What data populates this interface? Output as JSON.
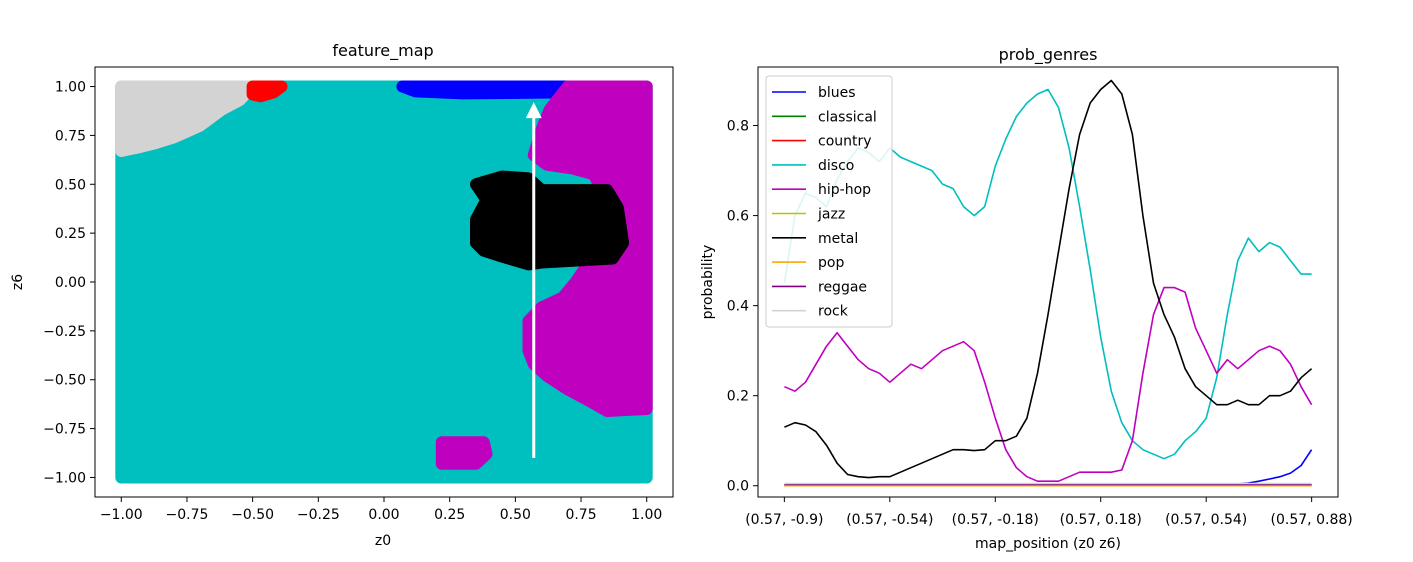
{
  "chart_data": [
    {
      "type": "scatter",
      "title": "feature_map",
      "xlabel": "z0",
      "ylabel": "z6",
      "xlim": [
        -1.1,
        1.1
      ],
      "ylim": [
        -1.1,
        1.1
      ],
      "xticks": [
        -1.0,
        -0.75,
        -0.5,
        -0.25,
        0.0,
        0.25,
        0.5,
        0.75,
        1.0
      ],
      "xtick_labels": [
        "−1.00",
        "−0.75",
        "−0.50",
        "−0.25",
        "0.00",
        "0.25",
        "0.50",
        "0.75",
        "1.00"
      ],
      "yticks": [
        1.0,
        0.75,
        0.5,
        0.25,
        0.0,
        -0.25,
        -0.5,
        -0.75,
        -1.0
      ],
      "ytick_labels": [
        "1.00",
        "0.75",
        "0.50",
        "0.25",
        "0.00",
        "−0.25",
        "−0.50",
        "−0.75",
        "−1.00"
      ],
      "grid": false,
      "regions": [
        {
          "genre": "disco",
          "color": "#00bfbf",
          "polygon": [
            [
              -1.0,
              -1.0
            ],
            [
              1.0,
              -1.0
            ],
            [
              1.0,
              1.0
            ],
            [
              -1.0,
              1.0
            ]
          ]
        },
        {
          "genre": "rock",
          "color": "#d3d3d3",
          "polygon": [
            [
              -1.0,
              1.0
            ],
            [
              -0.5,
              1.0
            ],
            [
              -0.55,
              0.93
            ],
            [
              -0.62,
              0.88
            ],
            [
              -0.66,
              0.84
            ],
            [
              -0.7,
              0.8
            ],
            [
              -0.75,
              0.77
            ],
            [
              -0.8,
              0.74
            ],
            [
              -0.87,
              0.71
            ],
            [
              -0.93,
              0.69
            ],
            [
              -1.0,
              0.67
            ]
          ]
        },
        {
          "genre": "country",
          "color": "#ff0000",
          "polygon": [
            [
              -0.5,
              1.0
            ],
            [
              -0.39,
              1.0
            ],
            [
              -0.42,
              0.97
            ],
            [
              -0.47,
              0.95
            ],
            [
              -0.5,
              0.96
            ]
          ]
        },
        {
          "genre": "blues",
          "color": "#0000ff",
          "polygon": [
            [
              0.07,
              1.0
            ],
            [
              0.72,
              1.0
            ],
            [
              0.7,
              0.97
            ],
            [
              0.3,
              0.965
            ],
            [
              0.12,
              0.975
            ]
          ]
        },
        {
          "genre": "hip-hop",
          "color": "#bf00bf",
          "polygon": [
            [
              0.7,
              1.0
            ],
            [
              1.0,
              1.0
            ],
            [
              1.0,
              -0.65
            ],
            [
              0.85,
              -0.66
            ],
            [
              0.77,
              -0.6
            ],
            [
              0.7,
              -0.55
            ],
            [
              0.62,
              -0.48
            ],
            [
              0.57,
              -0.42
            ],
            [
              0.55,
              -0.35
            ],
            [
              0.55,
              -0.2
            ],
            [
              0.6,
              -0.13
            ],
            [
              0.68,
              -0.08
            ],
            [
              0.73,
              0.0
            ],
            [
              0.78,
              0.1
            ],
            [
              0.82,
              0.2
            ],
            [
              0.85,
              0.4
            ],
            [
              0.8,
              0.55
            ],
            [
              0.72,
              0.58
            ],
            [
              0.62,
              0.6
            ],
            [
              0.57,
              0.65
            ],
            [
              0.6,
              0.78
            ],
            [
              0.63,
              0.88
            ],
            [
              0.67,
              0.95
            ]
          ]
        },
        {
          "genre": "metal",
          "color": "#000000",
          "polygon": [
            [
              0.35,
              0.5
            ],
            [
              0.45,
              0.54
            ],
            [
              0.55,
              0.53
            ],
            [
              0.6,
              0.47
            ],
            [
              0.85,
              0.47
            ],
            [
              0.89,
              0.38
            ],
            [
              0.91,
              0.2
            ],
            [
              0.87,
              0.12
            ],
            [
              0.6,
              0.1
            ],
            [
              0.55,
              0.09
            ],
            [
              0.45,
              0.13
            ],
            [
              0.38,
              0.16
            ],
            [
              0.35,
              0.2
            ],
            [
              0.35,
              0.32
            ],
            [
              0.39,
              0.42
            ]
          ]
        },
        {
          "genre": "hip-hop",
          "color": "#bf00bf",
          "polygon": [
            [
              0.22,
              -0.82
            ],
            [
              0.38,
              -0.82
            ],
            [
              0.39,
              -0.88
            ],
            [
              0.35,
              -0.93
            ],
            [
              0.22,
              -0.93
            ]
          ]
        }
      ],
      "arrow": {
        "x": 0.57,
        "y_start": -0.9,
        "y_end": 0.92,
        "color": "#ffffff"
      }
    },
    {
      "type": "line",
      "title": "prob_genres",
      "xlabel": "map_position (z0 z6)",
      "ylabel": "probability",
      "xlim": [
        -0.05,
        1.05
      ],
      "ylim": [
        -0.025,
        0.93
      ],
      "xticks": [
        0.0,
        0.2,
        0.4,
        0.6,
        0.8,
        1.0
      ],
      "xtick_labels": [
        "(0.57, -0.9)",
        "(0.57, -0.54)",
        "(0.57, -0.18)",
        "(0.57, 0.18)",
        "(0.57, 0.54)",
        "(0.57, 0.88)"
      ],
      "yticks": [
        0.0,
        0.2,
        0.4,
        0.6,
        0.8
      ],
      "ytick_labels": [
        "0.0",
        "0.2",
        "0.4",
        "0.6",
        "0.8"
      ],
      "grid": false,
      "legend_position": "top-left",
      "x": [
        0.0,
        0.02,
        0.04,
        0.06,
        0.08,
        0.1,
        0.12,
        0.14,
        0.16,
        0.18,
        0.2,
        0.22,
        0.24,
        0.26,
        0.28,
        0.3,
        0.32,
        0.34,
        0.36,
        0.38,
        0.4,
        0.42,
        0.44,
        0.46,
        0.48,
        0.5,
        0.52,
        0.54,
        0.56,
        0.58,
        0.6,
        0.62,
        0.64,
        0.66,
        0.68,
        0.7,
        0.72,
        0.74,
        0.76,
        0.78,
        0.8,
        0.82,
        0.84,
        0.86,
        0.88,
        0.9,
        0.92,
        0.94,
        0.96,
        0.98,
        1.0
      ],
      "series": [
        {
          "name": "blues",
          "color": "#0000ff",
          "values": [
            0,
            0,
            0,
            0,
            0,
            0,
            0,
            0,
            0,
            0,
            0,
            0,
            0,
            0,
            0,
            0,
            0,
            0,
            0,
            0,
            0,
            0,
            0,
            0,
            0,
            0,
            0,
            0,
            0,
            0,
            0,
            0,
            0,
            0,
            0,
            0,
            0,
            0,
            0,
            0,
            0.001,
            0.002,
            0.003,
            0.004,
            0.006,
            0.01,
            0.015,
            0.02,
            0.028,
            0.045,
            0.08
          ]
        },
        {
          "name": "classical",
          "color": "#008000",
          "values": [
            0,
            0,
            0,
            0,
            0,
            0,
            0,
            0,
            0,
            0,
            0,
            0,
            0,
            0,
            0,
            0,
            0,
            0,
            0,
            0,
            0,
            0,
            0,
            0,
            0,
            0,
            0,
            0,
            0,
            0,
            0,
            0,
            0,
            0,
            0,
            0,
            0,
            0,
            0,
            0,
            0,
            0,
            0,
            0,
            0,
            0,
            0,
            0,
            0,
            0,
            0
          ]
        },
        {
          "name": "country",
          "color": "#ff0000",
          "values": [
            0.002,
            0.002,
            0.002,
            0.002,
            0.002,
            0.002,
            0.002,
            0.002,
            0.002,
            0.002,
            0.002,
            0.002,
            0.002,
            0.002,
            0.002,
            0.002,
            0.002,
            0.002,
            0.002,
            0.002,
            0.002,
            0.002,
            0.002,
            0.002,
            0.002,
            0.002,
            0.002,
            0.002,
            0.002,
            0.002,
            0.002,
            0.002,
            0.002,
            0.002,
            0.002,
            0.002,
            0.002,
            0.002,
            0.002,
            0.002,
            0.002,
            0.002,
            0.002,
            0.002,
            0.002,
            0.002,
            0.002,
            0.002,
            0.002,
            0.002,
            0.002
          ]
        },
        {
          "name": "disco",
          "color": "#00bfbf",
          "values": [
            0.45,
            0.6,
            0.65,
            0.64,
            0.62,
            0.68,
            0.72,
            0.75,
            0.74,
            0.72,
            0.75,
            0.73,
            0.72,
            0.71,
            0.7,
            0.67,
            0.66,
            0.62,
            0.6,
            0.62,
            0.71,
            0.77,
            0.82,
            0.85,
            0.87,
            0.88,
            0.84,
            0.75,
            0.62,
            0.48,
            0.33,
            0.21,
            0.14,
            0.1,
            0.08,
            0.07,
            0.06,
            0.07,
            0.1,
            0.12,
            0.15,
            0.24,
            0.38,
            0.5,
            0.55,
            0.52,
            0.54,
            0.53,
            0.5,
            0.47,
            0.47
          ]
        },
        {
          "name": "hip-hop",
          "color": "#bf00bf",
          "values": [
            0.22,
            0.21,
            0.23,
            0.27,
            0.31,
            0.34,
            0.31,
            0.28,
            0.26,
            0.25,
            0.23,
            0.25,
            0.27,
            0.26,
            0.28,
            0.3,
            0.31,
            0.32,
            0.3,
            0.23,
            0.15,
            0.08,
            0.04,
            0.02,
            0.01,
            0.01,
            0.01,
            0.02,
            0.03,
            0.03,
            0.03,
            0.03,
            0.035,
            0.1,
            0.25,
            0.38,
            0.44,
            0.44,
            0.43,
            0.35,
            0.3,
            0.25,
            0.28,
            0.26,
            0.28,
            0.3,
            0.31,
            0.3,
            0.27,
            0.22,
            0.18
          ]
        },
        {
          "name": "jazz",
          "color": "#bfbf00",
          "values": [
            0.001,
            0.001,
            0.001,
            0.001,
            0.001,
            0.001,
            0.001,
            0.001,
            0.001,
            0.001,
            0.001,
            0.001,
            0.001,
            0.001,
            0.001,
            0.001,
            0.001,
            0.001,
            0.001,
            0.001,
            0.001,
            0.001,
            0.001,
            0.001,
            0.001,
            0.001,
            0.001,
            0.001,
            0.001,
            0.001,
            0.001,
            0.001,
            0.001,
            0.001,
            0.001,
            0.001,
            0.001,
            0.001,
            0.001,
            0.001,
            0.001,
            0.001,
            0.001,
            0.001,
            0.001,
            0.001,
            0.001,
            0.001,
            0.001,
            0.001,
            0.001
          ]
        },
        {
          "name": "metal",
          "color": "#000000",
          "values": [
            0.13,
            0.14,
            0.135,
            0.12,
            0.09,
            0.05,
            0.025,
            0.02,
            0.018,
            0.02,
            0.02,
            0.03,
            0.04,
            0.05,
            0.06,
            0.07,
            0.08,
            0.08,
            0.078,
            0.08,
            0.1,
            0.1,
            0.11,
            0.15,
            0.25,
            0.38,
            0.52,
            0.66,
            0.78,
            0.85,
            0.88,
            0.9,
            0.87,
            0.78,
            0.6,
            0.45,
            0.38,
            0.33,
            0.26,
            0.22,
            0.2,
            0.18,
            0.18,
            0.19,
            0.18,
            0.18,
            0.2,
            0.2,
            0.21,
            0.24,
            0.26
          ]
        },
        {
          "name": "pop",
          "color": "#ffa500",
          "values": [
            0,
            0,
            0,
            0,
            0,
            0,
            0,
            0,
            0,
            0,
            0,
            0,
            0,
            0,
            0,
            0,
            0,
            0,
            0,
            0,
            0,
            0,
            0,
            0,
            0,
            0,
            0,
            0,
            0,
            0,
            0,
            0,
            0,
            0,
            0,
            0,
            0,
            0,
            0,
            0,
            0,
            0,
            0,
            0,
            0,
            0,
            0,
            0,
            0,
            0,
            0
          ]
        },
        {
          "name": "reggae",
          "color": "#800080",
          "values": [
            0.003,
            0.003,
            0.003,
            0.003,
            0.003,
            0.003,
            0.003,
            0.003,
            0.003,
            0.003,
            0.003,
            0.003,
            0.003,
            0.003,
            0.003,
            0.003,
            0.003,
            0.003,
            0.003,
            0.003,
            0.003,
            0.003,
            0.003,
            0.003,
            0.003,
            0.003,
            0.003,
            0.003,
            0.003,
            0.003,
            0.003,
            0.003,
            0.003,
            0.003,
            0.003,
            0.003,
            0.003,
            0.003,
            0.003,
            0.003,
            0.003,
            0.003,
            0.003,
            0.003,
            0.003,
            0.003,
            0.003,
            0.003,
            0.003,
            0.003,
            0.003
          ]
        },
        {
          "name": "rock",
          "color": "#d3d3d3",
          "values": [
            0.005,
            0.005,
            0.005,
            0.005,
            0.005,
            0.005,
            0.005,
            0.005,
            0.005,
            0.005,
            0.005,
            0.005,
            0.005,
            0.005,
            0.005,
            0.005,
            0.005,
            0.005,
            0.005,
            0.005,
            0.005,
            0.005,
            0.005,
            0.005,
            0.005,
            0.005,
            0.005,
            0.005,
            0.005,
            0.005,
            0.005,
            0.005,
            0.005,
            0.005,
            0.005,
            0.005,
            0.005,
            0.005,
            0.005,
            0.005,
            0.005,
            0.005,
            0.005,
            0.005,
            0.005,
            0.005,
            0.005,
            0.005,
            0.005,
            0.005,
            0.005
          ]
        }
      ]
    }
  ]
}
